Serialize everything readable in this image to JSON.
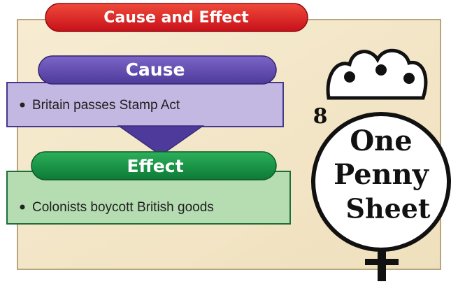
{
  "title": "Cause and Effect",
  "cause": {
    "heading": "Cause",
    "items": [
      "Britain passes Stamp Act"
    ]
  },
  "effect": {
    "heading": "Effect",
    "items": [
      "Colonists boycott British goods"
    ]
  },
  "stamp": {
    "number": "8",
    "lines": [
      "One",
      "Penny",
      "Sheet"
    ]
  }
}
